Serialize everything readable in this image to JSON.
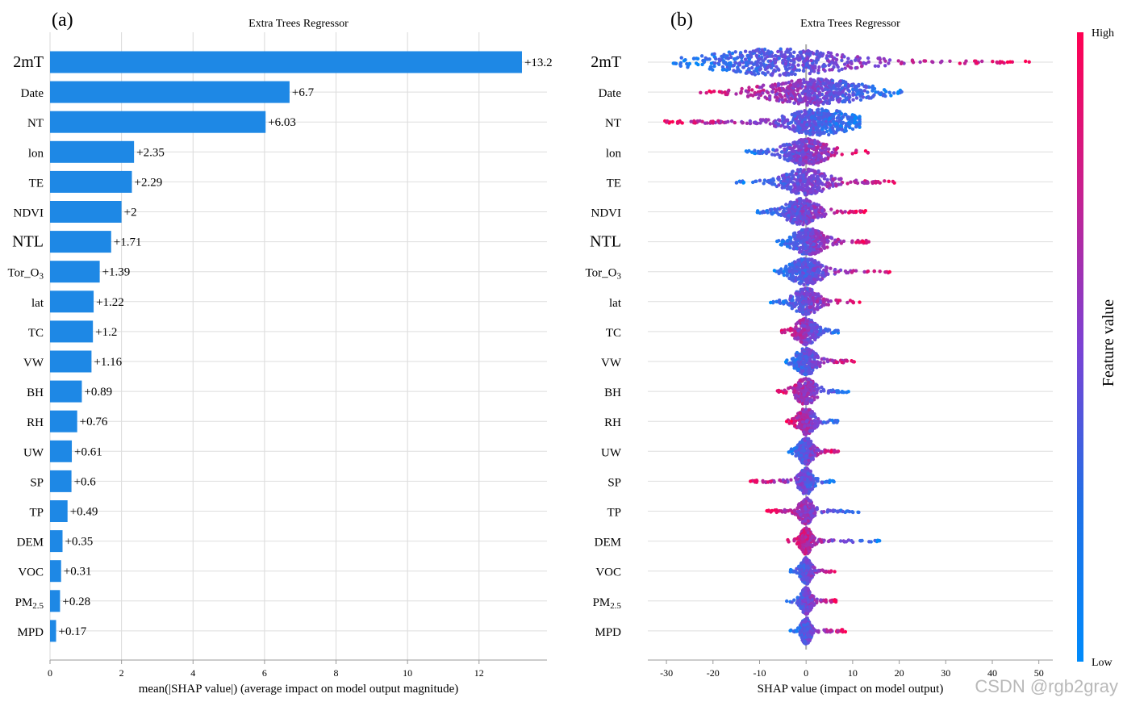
{
  "features": [
    "2mT",
    "Date",
    "NT",
    "lon",
    "TE",
    "NDVI",
    "NTL",
    "Tor_O3",
    "lat",
    "TC",
    "VW",
    "BH",
    "RH",
    "UW",
    "SP",
    "TP",
    "DEM",
    "VOC",
    "PM2.5",
    "MPD"
  ],
  "feature_labels": [
    {
      "base": "2mT",
      "sub": "",
      "big": true
    },
    {
      "base": "Date",
      "sub": "",
      "big": false
    },
    {
      "base": "NT",
      "sub": "",
      "big": false
    },
    {
      "base": "lon",
      "sub": "",
      "big": false
    },
    {
      "base": "TE",
      "sub": "",
      "big": false
    },
    {
      "base": "NDVI",
      "sub": "",
      "big": false
    },
    {
      "base": "NTL",
      "sub": "",
      "big": true
    },
    {
      "base": "Tor_O",
      "sub": "3",
      "big": false
    },
    {
      "base": "lat",
      "sub": "",
      "big": false
    },
    {
      "base": "TC",
      "sub": "",
      "big": false
    },
    {
      "base": "VW",
      "sub": "",
      "big": false
    },
    {
      "base": "BH",
      "sub": "",
      "big": false
    },
    {
      "base": "RH",
      "sub": "",
      "big": false
    },
    {
      "base": "UW",
      "sub": "",
      "big": false
    },
    {
      "base": "SP",
      "sub": "",
      "big": false
    },
    {
      "base": "TP",
      "sub": "",
      "big": false
    },
    {
      "base": "DEM",
      "sub": "",
      "big": false
    },
    {
      "base": "VOC",
      "sub": "",
      "big": false
    },
    {
      "base": "PM",
      "sub": "2.5",
      "big": false
    },
    {
      "base": "MPD",
      "sub": "",
      "big": false
    }
  ],
  "chart_data": [
    {
      "panel": "(a)",
      "type": "bar",
      "orientation": "horizontal",
      "title": "Extra Trees Regressor",
      "xlabel": "mean(|SHAP value|) (average impact on model output magnitude)",
      "xlim": [
        0,
        13.9
      ],
      "xticks": [
        0,
        2,
        4,
        6,
        8,
        10,
        12
      ],
      "categories": [
        "2mT",
        "Date",
        "NT",
        "lon",
        "TE",
        "NDVI",
        "NTL",
        "Tor_O3",
        "lat",
        "TC",
        "VW",
        "BH",
        "RH",
        "UW",
        "SP",
        "TP",
        "DEM",
        "VOC",
        "PM2.5",
        "MPD"
      ],
      "values": [
        13.2,
        6.7,
        6.03,
        2.35,
        2.29,
        2,
        1.71,
        1.39,
        1.22,
        1.2,
        1.16,
        0.89,
        0.76,
        0.61,
        0.6,
        0.49,
        0.35,
        0.31,
        0.28,
        0.17
      ],
      "value_labels": [
        "+13.2",
        "+6.7",
        "+6.03",
        "+2.35",
        "+2.29",
        "+2",
        "+1.71",
        "+1.39",
        "+1.22",
        "+1.2",
        "+1.16",
        "+0.89",
        "+0.76",
        "+0.61",
        "+0.6",
        "+0.49",
        "+0.35",
        "+0.31",
        "+0.28",
        "+0.17"
      ],
      "bar_color": "#1e88e5"
    },
    {
      "panel": "(b)",
      "type": "scatter",
      "subtype": "beeswarm",
      "title": "Extra Trees Regressor",
      "xlabel": "SHAP value (impact on model output)",
      "xlim": [
        -34,
        53
      ],
      "xticks": [
        -30,
        -20,
        -10,
        0,
        10,
        20,
        30,
        40,
        50
      ],
      "categories": [
        "2mT",
        "Date",
        "NT",
        "lon",
        "TE",
        "NDVI",
        "NTL",
        "Tor_O3",
        "lat",
        "TC",
        "VW",
        "BH",
        "RH",
        "UW",
        "SP",
        "TP",
        "DEM",
        "VOC",
        "PM2.5",
        "MPD"
      ],
      "ranges": [
        {
          "min": -28.5,
          "max": 48.5,
          "center": -6,
          "width": 13,
          "trend": 1
        },
        {
          "min": -23,
          "max": 21,
          "center": 2,
          "width": 9,
          "trend": -1
        },
        {
          "min": -30.5,
          "max": 11.5,
          "center": 3,
          "width": 6,
          "trend": -1
        },
        {
          "min": -13,
          "max": 13.5,
          "center": 0,
          "width": 4,
          "trend": 1
        },
        {
          "min": -15,
          "max": 20.5,
          "center": 0,
          "width": 4,
          "trend": 1
        },
        {
          "min": -11,
          "max": 13,
          "center": -1,
          "width": 3,
          "trend": 1
        },
        {
          "min": -7.5,
          "max": 13.5,
          "center": 0.5,
          "width": 3,
          "trend": 1
        },
        {
          "min": -7.5,
          "max": 18,
          "center": 0,
          "width": 3,
          "trend": 1
        },
        {
          "min": -8,
          "max": 11.5,
          "center": 0,
          "width": 2.5,
          "trend": 1
        },
        {
          "min": -6,
          "max": 7,
          "center": 0,
          "width": 2,
          "trend": -1
        },
        {
          "min": -4.5,
          "max": 10.5,
          "center": 0,
          "width": 2,
          "trend": 1
        },
        {
          "min": -6.5,
          "max": 9.5,
          "center": 0,
          "width": 2,
          "trend": -1
        },
        {
          "min": -4.5,
          "max": 7,
          "center": 0,
          "width": 1.6,
          "trend": -1
        },
        {
          "min": -4,
          "max": 7,
          "center": 0,
          "width": 1.4,
          "trend": 1
        },
        {
          "min": -12,
          "max": 6.5,
          "center": 0,
          "width": 1.3,
          "trend": -1
        },
        {
          "min": -8.5,
          "max": 11.5,
          "center": 0,
          "width": 1.3,
          "trend": -1
        },
        {
          "min": -4.5,
          "max": 16,
          "center": 0,
          "width": 1.1,
          "trend": -1
        },
        {
          "min": -3.8,
          "max": 7,
          "center": 0,
          "width": 1,
          "trend": 1
        },
        {
          "min": -4.5,
          "max": 6.5,
          "center": 0,
          "width": 1,
          "trend": 1
        },
        {
          "min": -3.5,
          "max": 8.5,
          "center": 0,
          "width": 0.9,
          "trend": 1
        }
      ],
      "colorbar": {
        "label": "Feature value",
        "high": "High",
        "low": "Low",
        "high_color": "#ff0052",
        "mid_color": "#7b42d4",
        "low_color": "#008bfb"
      }
    }
  ],
  "panel_labels": {
    "a": "(a)",
    "b": "(b)"
  },
  "watermark": "CSDN @rgb2gray"
}
